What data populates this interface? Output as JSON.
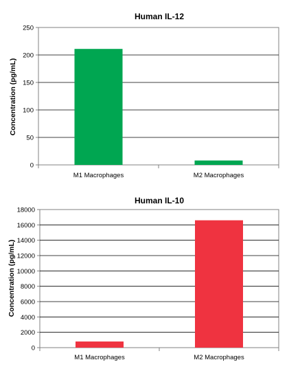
{
  "chart_data": [
    {
      "type": "bar",
      "title": "Human IL-12",
      "xlabel": "",
      "ylabel": "Concentration (pg/mL)",
      "categories": [
        "M1 Macrophages",
        "M2 Macrophages"
      ],
      "values": [
        211,
        8
      ],
      "ylim": [
        0,
        250
      ],
      "yticks": [
        0,
        50,
        100,
        150,
        200,
        250
      ],
      "grid": true,
      "colors": [
        "#00a651",
        "#00a651"
      ]
    },
    {
      "type": "bar",
      "title": "Human IL-10",
      "xlabel": "",
      "ylabel": "Concentration (pg/mL)",
      "categories": [
        "M1 Macrophages",
        "M2 Macrophages"
      ],
      "values": [
        800,
        16600
      ],
      "ylim": [
        0,
        18000
      ],
      "yticks": [
        0,
        2000,
        4000,
        6000,
        8000,
        10000,
        12000,
        14000,
        16000,
        18000
      ],
      "grid": true,
      "colors": [
        "#ef3340",
        "#ef3340"
      ]
    }
  ]
}
